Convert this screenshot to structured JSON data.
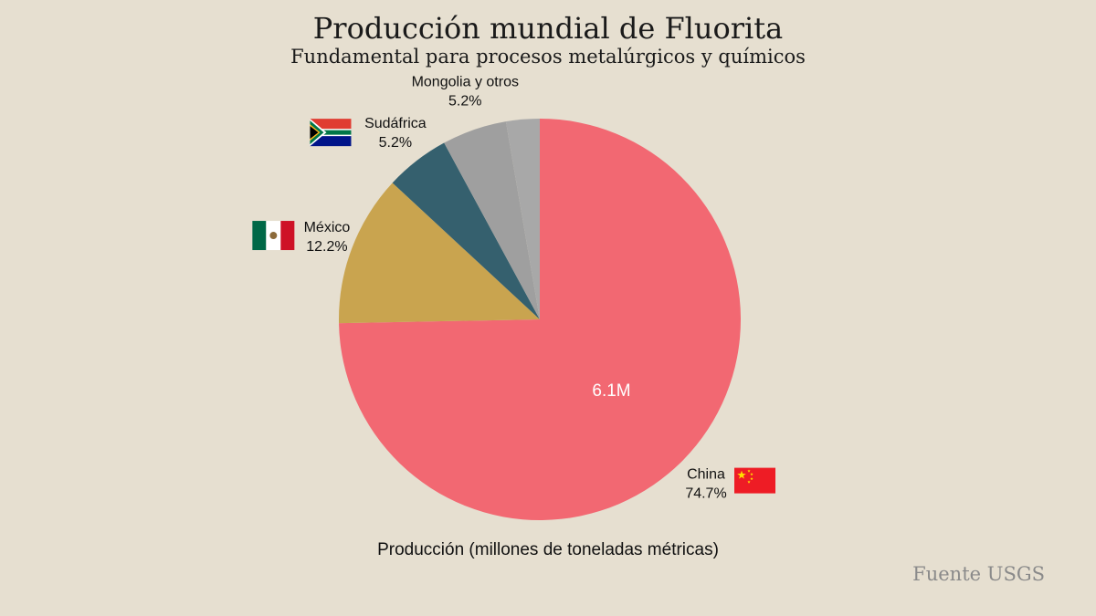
{
  "chart_data": {
    "type": "pie",
    "title": "Producción mundial de Fluorita",
    "subtitle": "Fundamental para procesos metalúrgicos y químicos",
    "xlabel": "Producción (millones de toneladas métricas)",
    "center_label": "6.1M",
    "source": "Fuente USGS",
    "slices": [
      {
        "name": "China",
        "percent_label": "74.7%",
        "value": 74.7,
        "color": "#f26872",
        "flag": "china-flag"
      },
      {
        "name": "México",
        "percent_label": "12.2%",
        "value": 12.2,
        "color": "#c9a44f",
        "flag": "mexico-flag"
      },
      {
        "name": "Sudáfrica",
        "percent_label": "5.2%",
        "value": 5.2,
        "color": "#35606e",
        "flag": "south-africa-flag"
      },
      {
        "name": "Mongolia y otros",
        "percent_label": "5.2%",
        "value": 5.2,
        "color": "#9f9f9f",
        "flag": ""
      },
      {
        "name": "",
        "percent_label": "",
        "value": 2.7,
        "color": "#a8a8a8",
        "flag": ""
      }
    ]
  }
}
